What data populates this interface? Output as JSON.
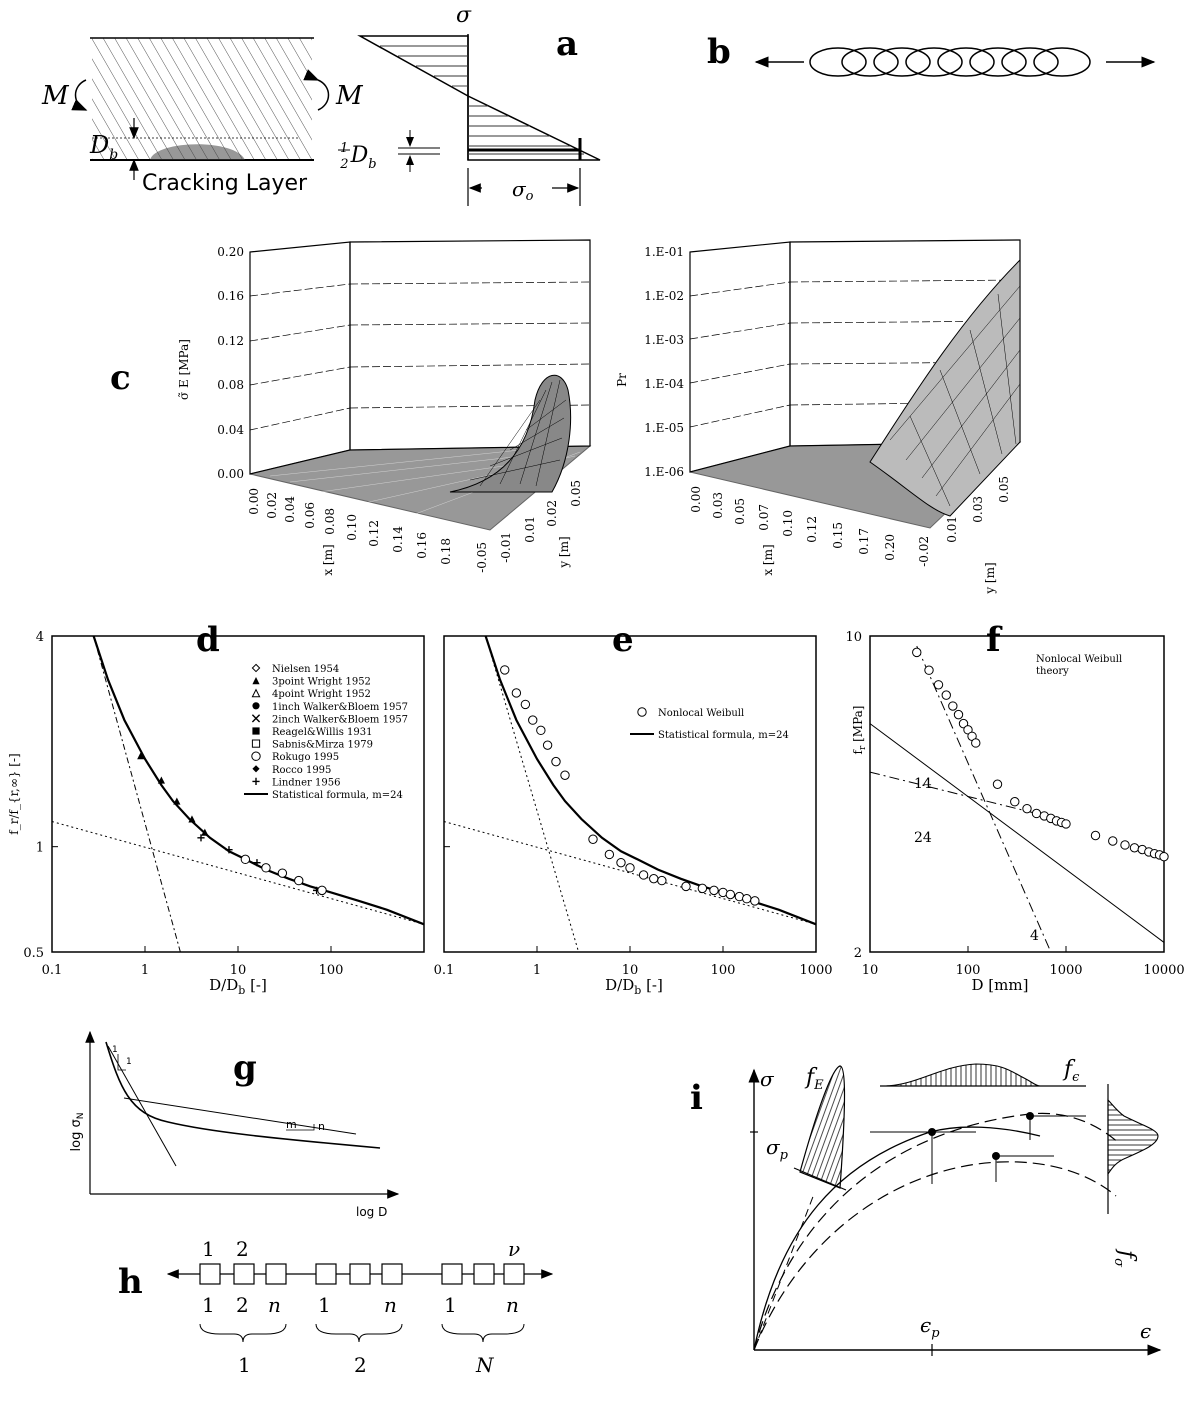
{
  "panels": {
    "a": {
      "letter": "a",
      "M_left": "M",
      "M_right": "M",
      "Db": "D",
      "Db_sub": "b",
      "cracking_layer": "Cracking Layer",
      "sigma": "σ",
      "half": "1/2",
      "half_num": "1",
      "half_den": "2",
      "sigma_o": "σ",
      "sigma_o_sub": "o"
    },
    "b": {
      "letter": "b"
    },
    "c": {
      "letter": "c",
      "left": {
        "zlabel": "σ̃ E [MPa]",
        "zticks": [
          "0.20",
          "0.16",
          "0.12",
          "0.08",
          "0.04",
          "0.00"
        ],
        "xlabel": "x [m]",
        "xticks": [
          "0.00",
          "0.02",
          "0.04",
          "0.06",
          "0.08",
          "0.10",
          "0.12",
          "0.14",
          "0.16",
          "0.18"
        ],
        "ylabel": "y [m]",
        "yticks": [
          "-0.05",
          "-0.01",
          "0.01",
          "0.02",
          "0.05"
        ]
      },
      "right": {
        "zlabel": "Pr",
        "zticks": [
          "1.E-01",
          "1.E-02",
          "1.E-03",
          "1.E-04",
          "1.E-05",
          "1.E-06"
        ],
        "xlabel": "x [m]",
        "xticks": [
          "0.00",
          "0.03",
          "0.05",
          "0.07",
          "0.10",
          "0.12",
          "0.15",
          "0.17",
          "0.20"
        ],
        "ylabel": "y [m]",
        "yticks": [
          "-0.02",
          "0.01",
          "0.03",
          "0.05"
        ]
      }
    },
    "d": {
      "letter": "d",
      "ylabel": "f",
      "ylabel_full": "f_r/f_{r,∞} [-]",
      "xlabel": "D/D",
      "xlabel_sub": "b",
      "xlabel_tail": " [-]",
      "yticks": [
        "4",
        "1",
        "0.5"
      ],
      "xticks": [
        "0.1",
        "1",
        "10",
        "100"
      ],
      "legend": [
        {
          "marker": "diamond-open",
          "label": "Nielsen 1954"
        },
        {
          "marker": "triangle-filled",
          "label": "3point Wright 1952"
        },
        {
          "marker": "triangle-open",
          "label": "4point Wright 1952"
        },
        {
          "marker": "circle-filled",
          "label": "1inch Walker&Bloem 1957"
        },
        {
          "marker": "cross-x",
          "label": "2inch Walker&Bloem 1957"
        },
        {
          "marker": "square-filled",
          "label": "Reagel&Willis 1931"
        },
        {
          "marker": "square-open",
          "label": "Sabnis&Mirza 1979"
        },
        {
          "marker": "circle-open",
          "label": "Rokugo 1995"
        },
        {
          "marker": "diamond-filled",
          "label": "Rocco 1995"
        },
        {
          "marker": "plus",
          "label": "Lindner 1956"
        },
        {
          "marker": "line",
          "label": "Statistical formula, m=24"
        }
      ]
    },
    "e": {
      "letter": "e",
      "xlabel": "D/D",
      "xlabel_sub": "b",
      "xlabel_tail": " [-]",
      "xticks": [
        "0.1",
        "1",
        "10",
        "100",
        "1000"
      ],
      "legend": [
        {
          "marker": "circle-open",
          "label": "Nonlocal Weibull"
        },
        {
          "marker": "line",
          "label": "Statistical formula, m=24"
        }
      ]
    },
    "f": {
      "letter": "f",
      "ylabel": "f",
      "ylabel_sub": "r",
      "ylabel_tail": " [MPa]",
      "note_line1": "Nonlocal Weibull",
      "note_line2": "theory",
      "yticks": [
        "10",
        "2"
      ],
      "xticks": [
        "10",
        "100",
        "1000",
        "10000"
      ],
      "xlabel": "D [mm]",
      "slopes": [
        "14",
        "24",
        "4"
      ]
    },
    "g": {
      "letter": "g",
      "ylabel": "log σ",
      "ylabel_sub": "N",
      "xlabel": "log D",
      "slope1_a": "1",
      "slope1_b": "1",
      "slope2_m": "m",
      "slope2_n": "n"
    },
    "h": {
      "letter": "h",
      "top_labels": [
        "1",
        "2",
        "ν"
      ],
      "bottom_labels": [
        "1",
        "2",
        "n",
        "1",
        "n",
        "1",
        "n"
      ],
      "group_labels": [
        "1",
        "2",
        "N"
      ]
    },
    "i": {
      "letter": "i",
      "sigma": "σ",
      "epsilon": "ϵ",
      "sigma_p": "σ",
      "sigma_p_sub": "p",
      "eps_p": "ϵ",
      "eps_p_sub": "p",
      "fE": "f",
      "fE_sub": "E",
      "feps": "f",
      "feps_sub": "ϵ",
      "fsig": "f",
      "fsig_sub": "σ"
    }
  },
  "chart_data": [
    {
      "id": "d",
      "type": "scatter",
      "xscale": "log",
      "yscale": "log",
      "xlabel": "D/D_b [-]",
      "ylabel": "f_r/f_r,∞ [-]",
      "xlim": [
        0.1,
        1000
      ],
      "ylim": [
        0.5,
        4
      ],
      "series": [
        {
          "name": "Statistical formula, m=24",
          "type": "line",
          "x": [
            0.28,
            0.4,
            0.6,
            1,
            1.5,
            2,
            3,
            5,
            8,
            12,
            20,
            35,
            60,
            100,
            200,
            400,
            1000
          ],
          "y": [
            4.0,
            3.0,
            2.3,
            1.78,
            1.5,
            1.35,
            1.2,
            1.06,
            0.97,
            0.92,
            0.86,
            0.81,
            0.77,
            0.74,
            0.7,
            0.66,
            0.6
          ]
        },
        {
          "name": "Lindner 1956",
          "x": [
            0.9,
            1.5,
            2.2,
            3.2,
            4.4
          ],
          "y": [
            1.82,
            1.55,
            1.35,
            1.2,
            1.1
          ]
        },
        {
          "name": "Nielsen 1954",
          "x": [
            4,
            8,
            16,
            30,
            70
          ],
          "y": [
            1.06,
            0.98,
            0.9,
            0.84,
            0.75
          ]
        },
        {
          "name": "Rokugo 1995",
          "x": [
            12,
            20,
            30,
            45,
            80
          ],
          "y": [
            0.92,
            0.87,
            0.84,
            0.8,
            0.75
          ]
        }
      ]
    },
    {
      "id": "e",
      "type": "scatter",
      "xscale": "log",
      "yscale": "log",
      "xlabel": "D/D_b [-]",
      "xlim": [
        0.1,
        1000
      ],
      "ylim": [
        0.5,
        4
      ],
      "series": [
        {
          "name": "Statistical formula, m=24",
          "type": "line",
          "x": [
            0.28,
            0.4,
            0.6,
            1,
            1.5,
            2,
            3,
            5,
            8,
            12,
            20,
            35,
            60,
            100,
            200,
            400,
            1000
          ],
          "y": [
            4.0,
            3.0,
            2.3,
            1.78,
            1.5,
            1.35,
            1.2,
            1.06,
            0.97,
            0.92,
            0.86,
            0.81,
            0.77,
            0.74,
            0.7,
            0.66,
            0.6
          ]
        },
        {
          "name": "Nonlocal Weibull",
          "x": [
            0.45,
            0.6,
            0.75,
            0.9,
            1.1,
            1.3,
            1.6,
            2,
            4,
            6,
            8,
            10,
            14,
            18,
            22,
            40,
            60,
            80,
            100,
            120,
            150,
            180,
            220
          ],
          "y": [
            3.2,
            2.75,
            2.55,
            2.3,
            2.15,
            1.95,
            1.75,
            1.6,
            1.05,
            0.95,
            0.9,
            0.87,
            0.83,
            0.81,
            0.8,
            0.77,
            0.76,
            0.75,
            0.74,
            0.73,
            0.72,
            0.71,
            0.7
          ]
        }
      ]
    },
    {
      "id": "f",
      "type": "scatter",
      "xscale": "log",
      "yscale": "log",
      "xlabel": "D [mm]",
      "ylabel": "f_r [MPa]",
      "xlim": [
        10,
        10000
      ],
      "ylim": [
        2,
        10
      ],
      "series": [
        {
          "name": "Nonlocal Weibull theory",
          "x": [
            30,
            40,
            50,
            60,
            70,
            80,
            90,
            100,
            110,
            120,
            200,
            300,
            400,
            500,
            600,
            700,
            800,
            900,
            1000,
            2000,
            3000,
            4000,
            5000,
            6000,
            7000,
            8000,
            9000,
            10000
          ],
          "y": [
            9.2,
            8.4,
            7.8,
            7.4,
            7.0,
            6.7,
            6.4,
            6.2,
            6.0,
            5.8,
            4.7,
            4.3,
            4.15,
            4.05,
            4.0,
            3.95,
            3.9,
            3.87,
            3.84,
            3.62,
            3.52,
            3.45,
            3.4,
            3.37,
            3.33,
            3.3,
            3.28,
            3.25
          ]
        }
      ]
    }
  ]
}
